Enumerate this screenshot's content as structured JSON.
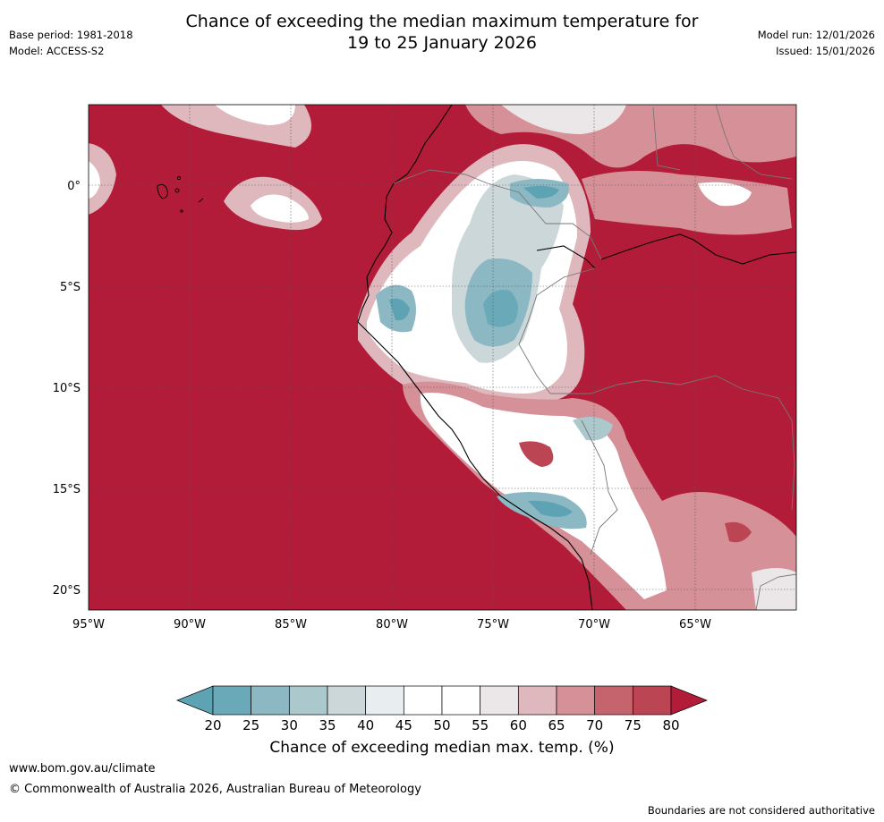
{
  "title_line1": "Chance of exceeding the median maximum temperature for",
  "title_line2": "19 to 25 January 2026",
  "base_period": "Base period: 1981-2018",
  "model": "Model: ACCESS-S2",
  "model_run": "Model run: 12/01/2026",
  "issued": "Issued: 15/01/2026",
  "lat_labels": [
    "0°",
    "5°S",
    "10°S",
    "15°S",
    "20°S"
  ],
  "lon_labels": [
    "95°W",
    "90°W",
    "85°W",
    "80°W",
    "75°W",
    "70°W",
    "65°W"
  ],
  "colorbar": {
    "ticks": [
      "20",
      "25",
      "30",
      "35",
      "40",
      "45",
      "50",
      "55",
      "60",
      "65",
      "70",
      "75",
      "80"
    ],
    "title": "Chance of exceeding median max. temp. (%)",
    "colors": [
      "#5ea3b3",
      "#6aa9b8",
      "#8cb8c3",
      "#abc8cc",
      "#ccd7d9",
      "#e8edf0",
      "#ffffff",
      "#ffffff",
      "#ebe7e8",
      "#dfb8bd",
      "#d69097",
      "#c6646e",
      "#bb4553",
      "#b31c38"
    ]
  },
  "footer": {
    "site": "www.bom.gov.au/climate",
    "copyright": "© Commonwealth of Australia 2026, Australian Bureau of Meteorology",
    "disclaimer": "Boundaries are not considered authoritative"
  }
}
